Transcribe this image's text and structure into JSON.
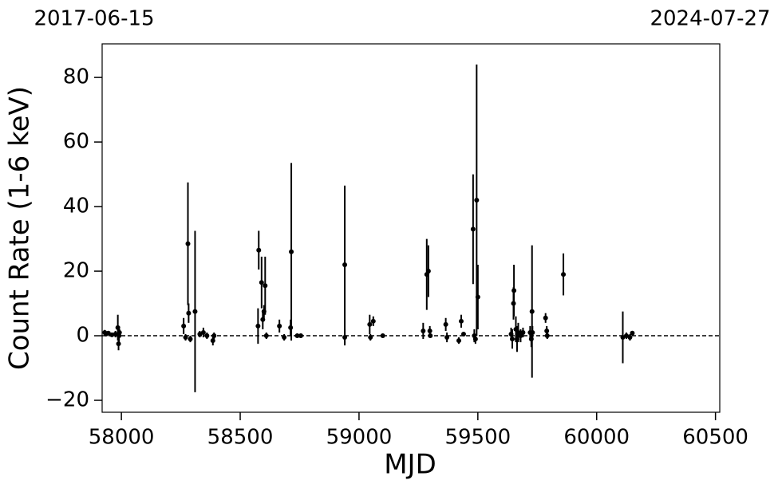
{
  "chart_data": {
    "type": "errorbar",
    "top_left_label": "2017-06-15",
    "top_right_label": "2024-07-27",
    "xlabel": "MJD",
    "ylabel": "Count Rate (1-6 keV)",
    "color": "#000000",
    "reference_line": 0,
    "xlim": [
      57919,
      60518
    ],
    "ylim": [
      -23.7,
      90.4
    ],
    "xticks": [
      58000,
      58500,
      59000,
      59500,
      60000,
      60500
    ],
    "yticks": [
      {
        "value": -20,
        "label": "−20"
      },
      0,
      20,
      40,
      60,
      80
    ],
    "x": [
      57930,
      57935,
      57945,
      57960,
      57975,
      57985,
      57988,
      57990,
      57992,
      58262,
      58270,
      58280,
      58283,
      58290,
      58310,
      58330,
      58345,
      58360,
      58385,
      58390,
      58575,
      58578,
      58590,
      58595,
      58600,
      58605,
      58610,
      58665,
      58685,
      58712,
      58715,
      58740,
      58755,
      58940,
      58940,
      59045,
      59048,
      59060,
      59100,
      59270,
      59285,
      59292,
      59298,
      59300,
      59365,
      59370,
      59420,
      59430,
      59440,
      59480,
      59485,
      59490,
      59495,
      59500,
      59640,
      59645,
      59650,
      59652,
      59660,
      59665,
      59670,
      59680,
      59690,
      59720,
      59725,
      59728,
      59730,
      59785,
      59790,
      59792,
      59860,
      60110,
      60125,
      60140,
      60150
    ],
    "values": [
      1,
      0.5,
      0.8,
      0.3,
      0.5,
      2.5,
      -2.5,
      0,
      1,
      3,
      -0.5,
      28.5,
      7,
      -1,
      7.5,
      0.5,
      1,
      0,
      -1.5,
      0,
      3,
      26.5,
      16.5,
      5,
      7.5,
      15.5,
      0,
      3,
      -0.5,
      2.5,
      26,
      0,
      0,
      22,
      -0.5,
      3.5,
      -0.5,
      4.5,
      0,
      1.5,
      19,
      20,
      1.5,
      0,
      3.5,
      -0.5,
      -1.5,
      4.5,
      0.5,
      33,
      0,
      -1,
      42,
      12,
      0.5,
      -1,
      10,
      14,
      2,
      -1,
      1,
      0,
      1,
      1,
      -1,
      7.5,
      1,
      5.5,
      1.5,
      0,
      19,
      -0.5,
      0,
      -0.5,
      0.8
    ],
    "errors": [
      0.8,
      0.5,
      0.5,
      0.5,
      1,
      4,
      2,
      3,
      1,
      2.5,
      1,
      19,
      3,
      1,
      25,
      1,
      1.5,
      1,
      1.5,
      1,
      5.5,
      6,
      8,
      3,
      2,
      9,
      1,
      2,
      1,
      2.5,
      27.5,
      0.5,
      0.5,
      24.5,
      2.5,
      3,
      1,
      1.5,
      0.5,
      2.5,
      11,
      8,
      1.5,
      0.5,
      2,
      1.5,
      1,
      2,
      0.5,
      17,
      2,
      1.5,
      42,
      10,
      2,
      3,
      5,
      8,
      4,
      4,
      3,
      2,
      1.5,
      2,
      2.5,
      20.5,
      2,
      1.5,
      1.5,
      1,
      6.5,
      8,
      1,
      1,
      0.5
    ]
  }
}
